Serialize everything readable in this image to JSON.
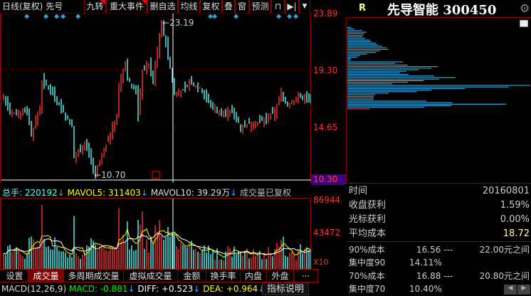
{
  "toolbar": {
    "title": "日线(复权)",
    "name_short": "先号",
    "buttons": [
      {
        "label": "九转",
        "flag": true
      },
      {
        "label": "重大事件",
        "flag": true
      },
      {
        "label": "删自选"
      },
      {
        "label": "均线"
      },
      {
        "label": "复权"
      },
      {
        "label": "叠"
      },
      {
        "label": "窗"
      },
      {
        "label": "预测"
      }
    ],
    "icons": [
      "lock-icon",
      "skip-forward-icon",
      "dropdown-icon"
    ]
  },
  "price_axis": {
    "labels": [
      "23.89",
      "19.30",
      "14.65",
      "10.30"
    ],
    "current_label": "10.30"
  },
  "volume_axis": {
    "labels": [
      "86944",
      "43472",
      "X10"
    ]
  },
  "chart": {
    "high_label": "23.19",
    "low_label": "10.70",
    "up_color": "#ff3333",
    "down_color": "#54ffff",
    "price_path": [
      [
        0,
        17.09
      ],
      [
        3,
        15.65
      ],
      [
        11,
        15.99
      ],
      [
        13,
        13.92
      ],
      [
        17,
        16.28
      ],
      [
        18,
        18.3
      ],
      [
        22,
        17.72
      ],
      [
        25,
        16.8
      ],
      [
        28,
        15.82
      ],
      [
        32,
        14.67
      ],
      [
        33,
        12.07
      ],
      [
        38,
        13.34
      ],
      [
        43,
        10.7
      ],
      [
        47,
        12.65
      ],
      [
        50,
        14.09
      ],
      [
        53,
        15.53
      ],
      [
        54,
        17.84
      ],
      [
        57,
        19.86
      ],
      [
        58,
        18.7
      ],
      [
        62,
        17.55
      ],
      [
        63,
        15.53
      ],
      [
        65,
        19.28
      ],
      [
        68,
        19.74
      ],
      [
        70,
        18.41
      ],
      [
        73,
        22.16
      ],
      [
        74,
        23.19
      ],
      [
        77,
        20.43
      ],
      [
        80,
        17.55
      ],
      [
        83,
        17.43
      ],
      [
        87,
        18.24
      ],
      [
        92,
        17.84
      ],
      [
        97,
        16.4
      ],
      [
        102,
        15.65
      ],
      [
        107,
        15.94
      ],
      [
        111,
        14.67
      ],
      [
        117,
        14.96
      ],
      [
        122,
        15.13
      ],
      [
        127,
        15.82
      ],
      [
        130,
        17.43
      ],
      [
        133,
        16.4
      ],
      [
        138,
        17.09
      ],
      [
        144,
        16.97
      ]
    ],
    "event_markers": [
      11,
      20,
      25,
      28,
      35,
      97,
      99,
      109,
      129,
      134,
      137
    ]
  },
  "volume": {
    "header": {
      "total_label": "总手: 220192",
      "mavol5_label": "MAVOL5: 311403",
      "mavol10_label": "MAVOL10: 39.29万",
      "note": "成交量已复权"
    }
  },
  "tabs": [
    {
      "label": "设置"
    },
    {
      "label": "成交量",
      "active": true
    },
    {
      "label": "多周期成交量"
    },
    {
      "label": "虚拟成交量"
    },
    {
      "label": "金额"
    },
    {
      "label": "换手率"
    },
    {
      "label": "内盘"
    },
    {
      "label": "外盘"
    },
    {
      "label": "···"
    }
  ],
  "macd": {
    "name": "MACD(12,26,9)",
    "macd": "MACD: -0.881",
    "diff": "DIFF: +0.523",
    "dea": "DEA: +0.964",
    "help_button": "指标说明"
  },
  "right": {
    "badge": "R",
    "stock_title": "先导智能 300450",
    "chip_distribution": [
      5,
      10,
      21,
      27,
      24,
      22,
      21,
      25,
      32,
      34,
      40,
      43,
      49,
      55,
      58,
      46,
      40,
      28,
      18,
      14,
      5,
      4,
      78,
      67,
      85,
      127,
      118,
      100,
      83,
      74,
      86,
      122,
      152,
      129,
      107,
      85,
      63,
      258,
      227,
      165,
      118,
      98,
      58,
      39,
      37,
      37,
      37,
      111,
      148,
      223,
      146,
      108,
      31
    ],
    "info": [
      {
        "label": "时间",
        "value": "20160801"
      },
      {
        "label": "收盘获利",
        "value": "1.59%"
      },
      {
        "label": "光标获利",
        "value": "0.00%"
      },
      {
        "label": "平均成本",
        "value": "18.72"
      }
    ],
    "cost": [
      {
        "label": "90%成本",
        "low": "16.56 ---",
        "high": "22.00元之间",
        "conc_label": "集中度90",
        "conc": "14.11%"
      },
      {
        "label": "70%成本",
        "low": "16.88 ---",
        "high": "20.80元之间",
        "conc_label": "集中度70",
        "conc": "10.40%"
      }
    ]
  }
}
